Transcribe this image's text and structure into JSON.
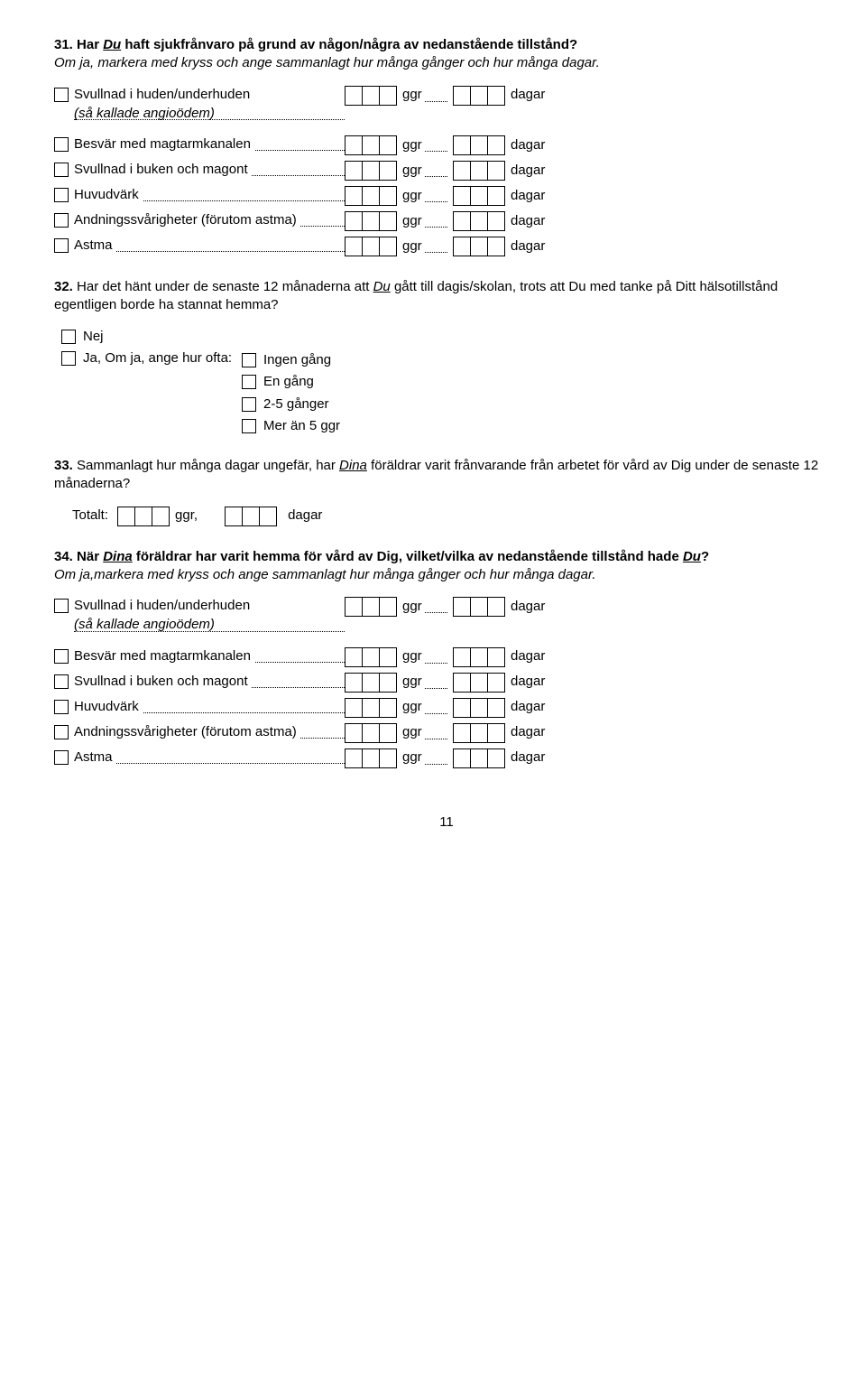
{
  "page_number": "11",
  "units": {
    "ggr": "ggr",
    "dagar": "dagar",
    "ggr_comma": "ggr,"
  },
  "q31": {
    "number": "31.",
    "title_parts": {
      "a": "Har ",
      "du": "Du",
      "b": " haft sjukfrånvaro på grund av någon/några av nedanstående tillstånd?"
    },
    "subtitle": "Om ja, markera med kryss och ange sammanlagt hur många gånger och hur många dagar.",
    "conditions": [
      {
        "label": "Svullnad i huden/underhuden",
        "sub": "(så kallade angioödem)"
      },
      {
        "label": "Besvär med magtarmkanalen"
      },
      {
        "label": "Svullnad i buken och magont"
      },
      {
        "label": "Huvudvärk"
      },
      {
        "label": "Andningssvårigheter (förutom astma)"
      },
      {
        "label": "Astma"
      }
    ]
  },
  "q32": {
    "number": "32.",
    "title_parts": {
      "a": "Har det hänt under de senaste 12 månaderna att ",
      "du": "Du",
      "b": " gått till dagis/skolan, trots att Du med tanke på Ditt hälsotillstånd egentligen borde ha stannat hemma?"
    },
    "options": {
      "nej": "Nej",
      "ja": "Ja, ",
      "ja_suffix": "Om ja, ange hur ofta:",
      "freq": [
        "Ingen gång",
        "En gång",
        "2-5 gånger",
        "Mer än 5 ggr"
      ]
    }
  },
  "q33": {
    "number": "33.",
    "title_parts": {
      "a": "Sammanlagt hur många dagar ungefär, har ",
      "dina": "Dina",
      "b": " föräldrar varit frånvarande från arbetet för vård av Dig under de senaste 12 månaderna?"
    },
    "total_label": "Totalt:"
  },
  "q34": {
    "number": "34.",
    "title_parts": {
      "a": "När ",
      "dina": "Dina",
      "b": " föräldrar har varit hemma för vård av Dig, vilket/vilka av nedanstående tillstånd hade ",
      "du": "Du",
      "c": "?"
    },
    "subtitle": "Om ja,markera med kryss och ange sammanlagt hur många gånger och hur många dagar.",
    "conditions": [
      {
        "label": "Svullnad i huden/underhuden",
        "sub": "(så kallade angioödem)"
      },
      {
        "label": "Besvär med magtarmkanalen"
      },
      {
        "label": "Svullnad i buken och magont"
      },
      {
        "label": "Huvudvärk"
      },
      {
        "label": "Andningssvårigheter (förutom astma)"
      },
      {
        "label": "Astma"
      }
    ]
  }
}
